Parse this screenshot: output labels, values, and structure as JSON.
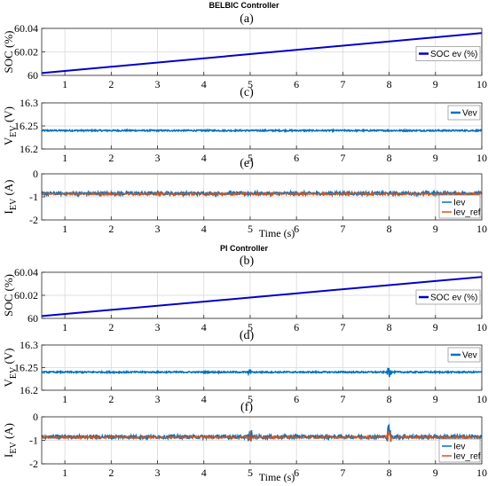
{
  "colors": {
    "soc": "#0000c8",
    "vev": "#0072bd",
    "iev": "#0072bd",
    "iev_ref": "#d95319",
    "grid": "#d9d9d9",
    "axis": "#262626"
  },
  "chart_data": [
    {
      "section": "BELBIC Controller",
      "label": "(a)",
      "type": "line",
      "ylabel": "SOC (%)",
      "ylim": [
        60,
        60.04
      ],
      "yticks": [
        "60",
        "60.02",
        "60.04"
      ],
      "xlim": [
        0.5,
        10
      ],
      "xticks": [
        "1",
        "2",
        "3",
        "4",
        "5",
        "6",
        "7",
        "8",
        "9",
        "10"
      ],
      "grid": true,
      "legend_position": "right",
      "series": [
        {
          "name": "SOC ev (%)",
          "x": [
            0.5,
            10
          ],
          "y": [
            60.002,
            60.036
          ]
        }
      ]
    },
    {
      "label": "(c)",
      "type": "line",
      "ylabel": "V_EV (V)",
      "ylim": [
        16.2,
        16.3
      ],
      "yticks": [
        "16.2",
        "16.25",
        "16.3"
      ],
      "xlim": [
        0.5,
        10
      ],
      "xticks": [
        "1",
        "2",
        "3",
        "4",
        "5",
        "6",
        "7",
        "8",
        "9",
        "10"
      ],
      "grid": true,
      "legend_position": "top-right",
      "series": [
        {
          "name": "Vev",
          "x": [
            0.5,
            10
          ],
          "y": [
            16.24,
            16.24
          ],
          "noise": 0.0015
        }
      ]
    },
    {
      "label": "(e)",
      "type": "line",
      "ylabel": "I_EV (A)",
      "ylim": [
        -2,
        0
      ],
      "yticks": [
        "-2",
        "-1",
        "0"
      ],
      "xlim": [
        0.5,
        10
      ],
      "xticks": [
        "1",
        "2",
        "3",
        "4",
        "5",
        "6",
        "7",
        "8",
        "9",
        "10"
      ],
      "xlabel": "Time (s)",
      "grid": true,
      "legend_position": "bottom-right",
      "series": [
        {
          "name": "Iev",
          "x": [
            0.5,
            10
          ],
          "y": [
            -0.85,
            -0.85
          ],
          "noise": 0.07
        },
        {
          "name": "Iev_ref",
          "x": [
            0.5,
            10
          ],
          "y": [
            -0.87,
            -0.87
          ],
          "noise": 0.05
        }
      ]
    },
    {
      "section": "PI Controller",
      "label": "(b)",
      "type": "line",
      "ylabel": "SOC (%)",
      "ylim": [
        60,
        60.04
      ],
      "yticks": [
        "60",
        "60.02",
        "60.04"
      ],
      "xlim": [
        0.5,
        10
      ],
      "xticks": [
        "1",
        "2",
        "3",
        "4",
        "5",
        "6",
        "7",
        "8",
        "9",
        "10"
      ],
      "grid": true,
      "legend_position": "right",
      "series": [
        {
          "name": "SOC ev (%)",
          "x": [
            0.5,
            10
          ],
          "y": [
            60.002,
            60.036
          ]
        }
      ]
    },
    {
      "label": "(d)",
      "type": "line",
      "ylabel": "V_EV (V)",
      "ylim": [
        16.2,
        16.3
      ],
      "yticks": [
        "16.2",
        "16.25",
        "16.3"
      ],
      "xlim": [
        0.5,
        10
      ],
      "xticks": [
        "1",
        "2",
        "3",
        "4",
        "5",
        "6",
        "7",
        "8",
        "9",
        "10"
      ],
      "grid": true,
      "legend_position": "top-right",
      "series": [
        {
          "name": "Vev",
          "x": [
            0.5,
            10
          ],
          "y": [
            16.24,
            16.24
          ],
          "noise": 0.0015,
          "spikes": [
            {
              "x": 5,
              "amp": 0.01
            },
            {
              "x": 8,
              "amp": 0.015
            }
          ]
        }
      ]
    },
    {
      "label": "(f)",
      "type": "line",
      "ylabel": "I_EV (A)",
      "ylim": [
        -2,
        0
      ],
      "yticks": [
        "-2",
        "-1",
        "0"
      ],
      "xlim": [
        0.5,
        10
      ],
      "xticks": [
        "1",
        "2",
        "3",
        "4",
        "5",
        "6",
        "7",
        "8",
        "9",
        "10"
      ],
      "xlabel": "Time (s)",
      "grid": true,
      "legend_position": "bottom-right",
      "series": [
        {
          "name": "Iev",
          "x": [
            0.5,
            10
          ],
          "y": [
            -0.85,
            -0.85
          ],
          "noise": 0.07,
          "spikes": [
            {
              "x": 5,
              "amp": 0.5
            },
            {
              "x": 8,
              "amp": 0.8
            }
          ]
        },
        {
          "name": "Iev_ref",
          "x": [
            0.5,
            10
          ],
          "y": [
            -0.87,
            -0.87
          ],
          "noise": 0.05,
          "spikes": [
            {
              "x": 5,
              "amp": 0.3
            },
            {
              "x": 8,
              "amp": 0.45
            }
          ]
        }
      ]
    }
  ]
}
